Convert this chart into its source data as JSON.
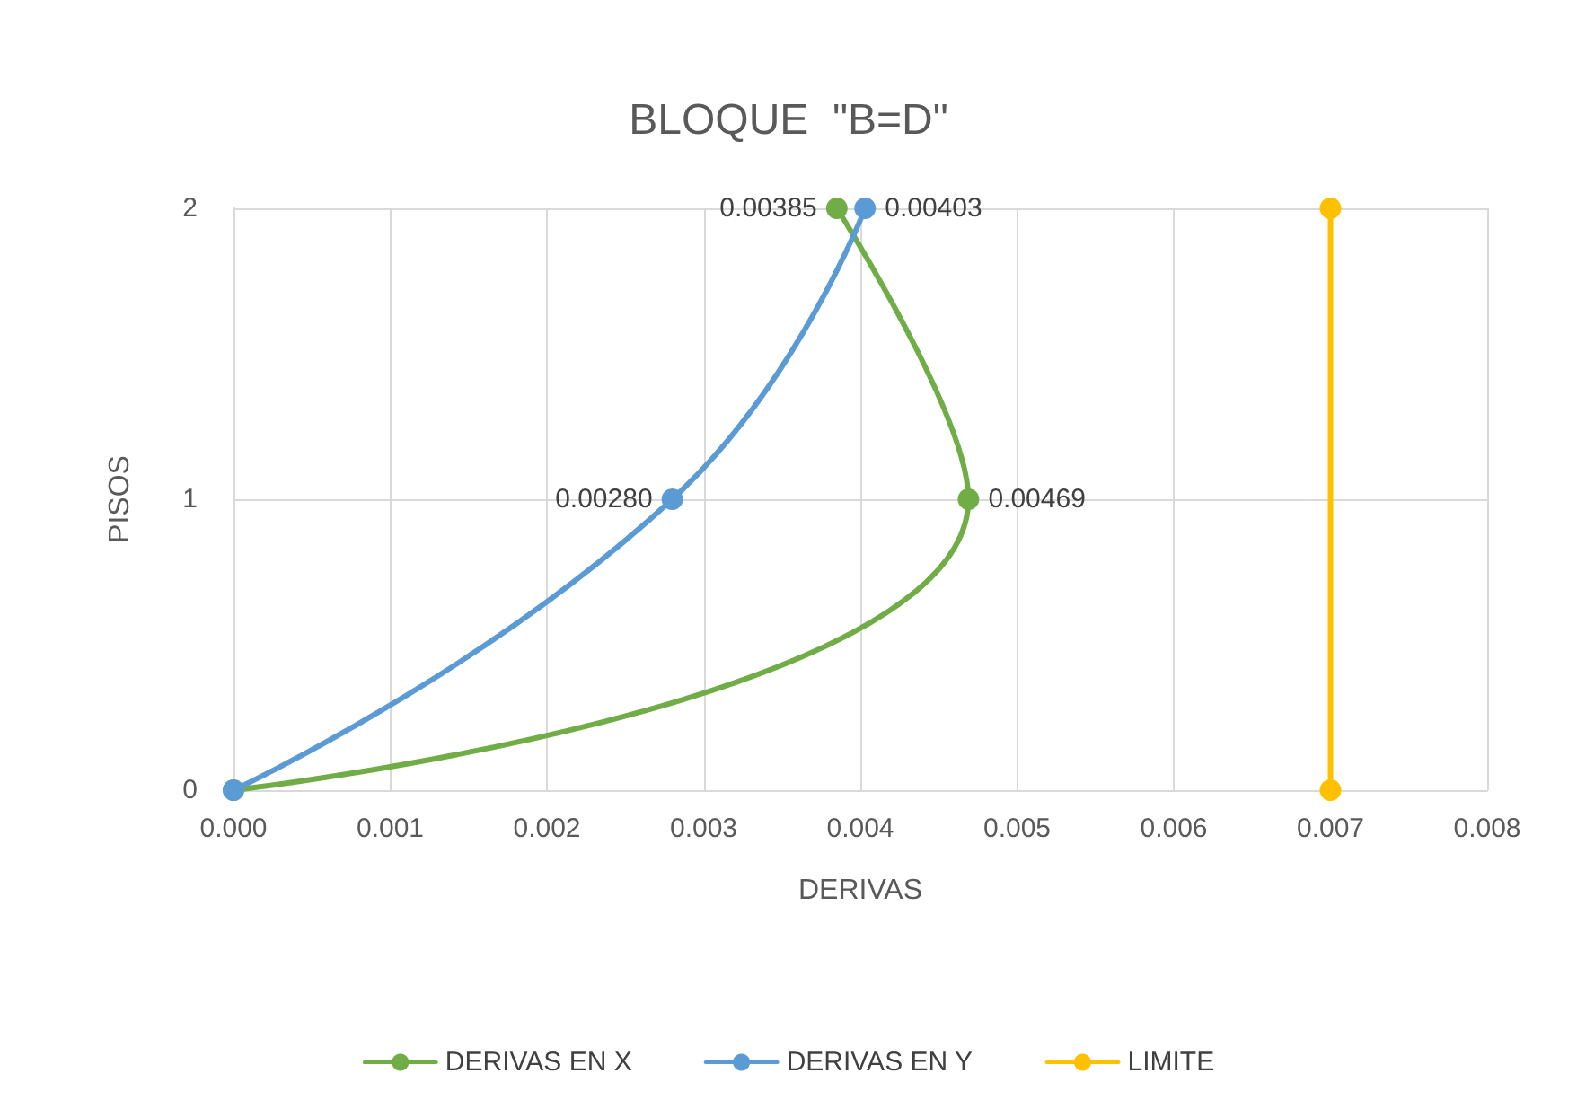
{
  "chart_data": {
    "type": "line",
    "orientation": "horizontal",
    "title": "BLOQUE  \"B=D\"",
    "xlabel": "DERIVAS",
    "ylabel": "PISOS",
    "categories": [
      "2",
      "1",
      "0"
    ],
    "xlim": [
      0,
      0.008
    ],
    "xticks": [
      {
        "value": 0,
        "label": "0.000"
      },
      {
        "value": 0.001,
        "label": "0.001"
      },
      {
        "value": 0.002,
        "label": "0.002"
      },
      {
        "value": 0.003,
        "label": "0.003"
      },
      {
        "value": 0.004,
        "label": "0.004"
      },
      {
        "value": 0.005,
        "label": "0.005"
      },
      {
        "value": 0.006,
        "label": "0.006"
      },
      {
        "value": 0.007,
        "label": "0.007"
      },
      {
        "value": 0.008,
        "label": "0.008"
      }
    ],
    "grid": true,
    "legend": "bottom",
    "marker": "circle",
    "line_style": "solid",
    "series": [
      {
        "name": "DERIVAS EN X",
        "color": "#70ad47",
        "values": [
          0.00385,
          0.00469,
          0
        ],
        "value_labels": [
          "0.00385",
          "0.00469",
          null
        ]
      },
      {
        "name": "DERIVAS EN Y",
        "color": "#5b9bd5",
        "values": [
          0.00403,
          0.0028,
          0
        ],
        "value_labels": [
          "0.00403",
          "0.00280",
          null
        ]
      },
      {
        "name": "LIMITE",
        "color": "#ffc000",
        "values": [
          0.007,
          null,
          0.007
        ]
      }
    ]
  }
}
